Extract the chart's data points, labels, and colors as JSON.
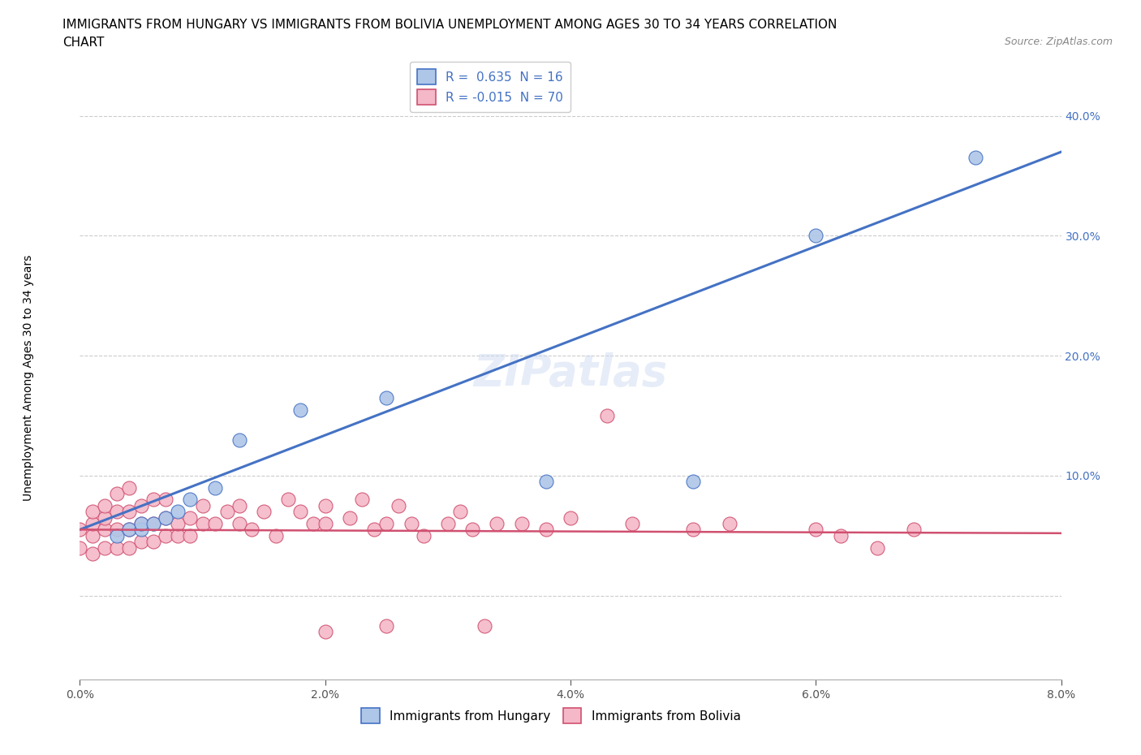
{
  "title_line1": "IMMIGRANTS FROM HUNGARY VS IMMIGRANTS FROM BOLIVIA UNEMPLOYMENT AMONG AGES 30 TO 34 YEARS CORRELATION",
  "title_line2": "CHART",
  "source": "Source: ZipAtlas.com",
  "ylabel": "Unemployment Among Ages 30 to 34 years",
  "watermark": "ZIPatlas",
  "hungary_R": 0.635,
  "hungary_N": 16,
  "bolivia_R": -0.015,
  "bolivia_N": 70,
  "hungary_color": "#aec6e8",
  "bolivia_color": "#f4b8c8",
  "hungary_line_color": "#4472C4",
  "bolivia_line_color": "#d05070",
  "xlim": [
    0.0,
    0.08
  ],
  "ylim": [
    -0.07,
    0.44
  ],
  "xticks": [
    0.0,
    0.02,
    0.04,
    0.06,
    0.08
  ],
  "xtick_labels": [
    "0.0%",
    "2.0%",
    "4.0%",
    "6.0%",
    "8.0%"
  ],
  "ytick_positions": [
    0.0,
    0.1,
    0.2,
    0.3,
    0.4
  ],
  "ytick_labels": [
    "",
    "10.0%",
    "20.0%",
    "30.0%",
    "40.0%"
  ],
  "hungary_x": [
    0.003,
    0.004,
    0.005,
    0.005,
    0.006,
    0.007,
    0.008,
    0.009,
    0.011,
    0.013,
    0.018,
    0.025,
    0.038,
    0.05,
    0.06,
    0.073
  ],
  "hungary_y": [
    0.05,
    0.055,
    0.055,
    0.06,
    0.06,
    0.065,
    0.07,
    0.08,
    0.09,
    0.13,
    0.155,
    0.165,
    0.095,
    0.095,
    0.3,
    0.365
  ],
  "bolivia_x": [
    0.0,
    0.0,
    0.001,
    0.001,
    0.001,
    0.001,
    0.002,
    0.002,
    0.002,
    0.002,
    0.003,
    0.003,
    0.003,
    0.003,
    0.004,
    0.004,
    0.004,
    0.004,
    0.005,
    0.005,
    0.005,
    0.006,
    0.006,
    0.006,
    0.007,
    0.007,
    0.007,
    0.008,
    0.008,
    0.009,
    0.009,
    0.01,
    0.01,
    0.011,
    0.012,
    0.013,
    0.013,
    0.014,
    0.015,
    0.016,
    0.017,
    0.018,
    0.019,
    0.02,
    0.02,
    0.022,
    0.023,
    0.024,
    0.025,
    0.026,
    0.027,
    0.028,
    0.03,
    0.031,
    0.032,
    0.034,
    0.036,
    0.038,
    0.04,
    0.043,
    0.045,
    0.05,
    0.053,
    0.06,
    0.062,
    0.065,
    0.068,
    0.02,
    0.033,
    0.025
  ],
  "bolivia_y": [
    0.04,
    0.055,
    0.035,
    0.05,
    0.06,
    0.07,
    0.04,
    0.055,
    0.065,
    0.075,
    0.04,
    0.055,
    0.07,
    0.085,
    0.04,
    0.055,
    0.07,
    0.09,
    0.045,
    0.06,
    0.075,
    0.045,
    0.06,
    0.08,
    0.05,
    0.065,
    0.08,
    0.05,
    0.06,
    0.05,
    0.065,
    0.06,
    0.075,
    0.06,
    0.07,
    0.06,
    0.075,
    0.055,
    0.07,
    0.05,
    0.08,
    0.07,
    0.06,
    0.075,
    0.06,
    0.065,
    0.08,
    0.055,
    0.06,
    0.075,
    0.06,
    0.05,
    0.06,
    0.07,
    0.055,
    0.06,
    0.06,
    0.055,
    0.065,
    0.15,
    0.06,
    0.055,
    0.06,
    0.055,
    0.05,
    0.04,
    0.055,
    -0.03,
    -0.025,
    -0.025
  ],
  "title_fontsize": 11,
  "axis_label_fontsize": 10,
  "tick_fontsize": 10,
  "legend_fontsize": 11,
  "source_fontsize": 9,
  "watermark_fontsize": 38
}
